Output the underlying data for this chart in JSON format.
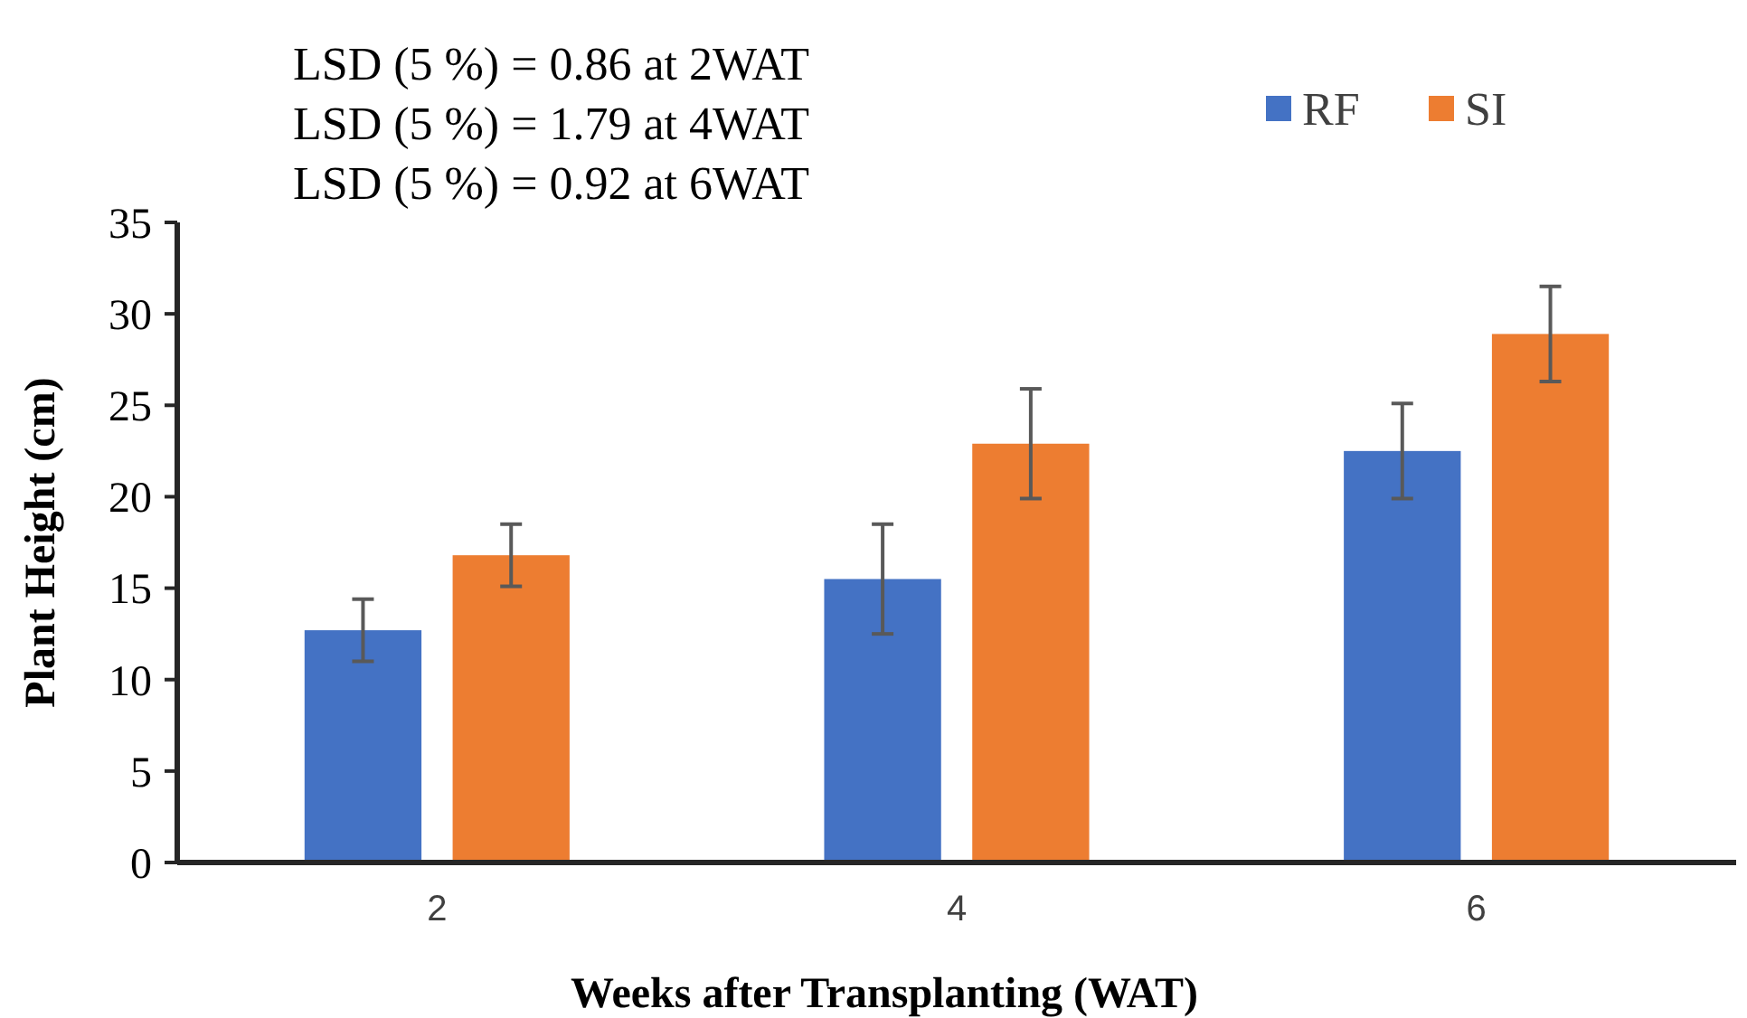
{
  "chart_data": {
    "type": "bar",
    "xlabel": "Weeks after Transplanting (WAT)",
    "ylabel": "Plant Height (cm)",
    "categories": [
      "2",
      "4",
      "6"
    ],
    "series": [
      {
        "name": "RF",
        "color": "#4472c4",
        "values": [
          12.7,
          15.5,
          22.5
        ],
        "errors": [
          1.7,
          3.0,
          2.6
        ]
      },
      {
        "name": "SI",
        "color": "#ed7d31",
        "values": [
          16.8,
          22.9,
          28.9
        ],
        "errors": [
          1.7,
          3.0,
          2.6
        ]
      }
    ],
    "ylim": [
      0,
      35
    ],
    "yticks": [
      0,
      5,
      10,
      15,
      20,
      25,
      30,
      35
    ],
    "grid": false,
    "legend": "top right",
    "annotations": [
      "LSD (5 %) = 0.86 at 2WAT",
      "LSD (5 %) = 1.79 at 4WAT",
      "LSD (5 %) = 0.92 at 6WAT"
    ]
  }
}
